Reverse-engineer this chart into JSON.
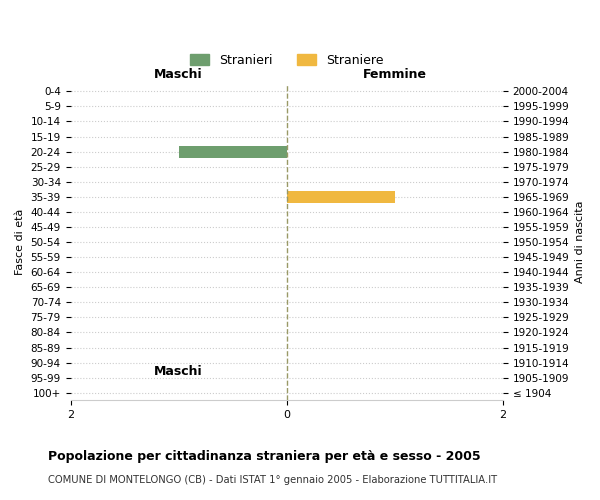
{
  "age_groups": [
    "100+",
    "95-99",
    "90-94",
    "85-89",
    "80-84",
    "75-79",
    "70-74",
    "65-69",
    "60-64",
    "55-59",
    "50-54",
    "45-49",
    "40-44",
    "35-39",
    "30-34",
    "25-29",
    "20-24",
    "15-19",
    "10-14",
    "5-9",
    "0-4"
  ],
  "birth_years": [
    "≤ 1904",
    "1905-1909",
    "1910-1914",
    "1915-1919",
    "1920-1924",
    "1925-1929",
    "1930-1934",
    "1935-1939",
    "1940-1944",
    "1945-1949",
    "1950-1954",
    "1955-1959",
    "1960-1964",
    "1965-1969",
    "1970-1974",
    "1975-1979",
    "1980-1984",
    "1985-1989",
    "1990-1994",
    "1995-1999",
    "2000-2004"
  ],
  "males": [
    0,
    0,
    0,
    0,
    0,
    0,
    0,
    0,
    0,
    0,
    0,
    0,
    0,
    0,
    0,
    0,
    1,
    0,
    0,
    0,
    0
  ],
  "females": [
    0,
    0,
    0,
    0,
    0,
    0,
    0,
    0,
    0,
    0,
    0,
    0,
    0,
    1,
    0,
    0,
    0,
    0,
    0,
    0,
    0
  ],
  "male_color": "#6e9e6e",
  "female_color": "#f0b840",
  "male_label": "Stranieri",
  "female_label": "Straniere",
  "xlim": [
    -2,
    2
  ],
  "xticks": [
    -2,
    0,
    2
  ],
  "xlabel_left": "Maschi",
  "xlabel_right": "Femmine",
  "ylabel_left": "Fasce di età",
  "ylabel_right": "Anni di nascita",
  "title": "Popolazione per cittadinanza straniera per età e sesso - 2005",
  "subtitle": "COMUNE DI MONTELONGO (CB) - Dati ISTAT 1° gennaio 2005 - Elaborazione TUTTITALIA.IT",
  "bar_height": 0.8,
  "background_color": "#ffffff",
  "grid_color": "#cccccc",
  "center_line_color": "#999966",
  "center_line_style": "--"
}
